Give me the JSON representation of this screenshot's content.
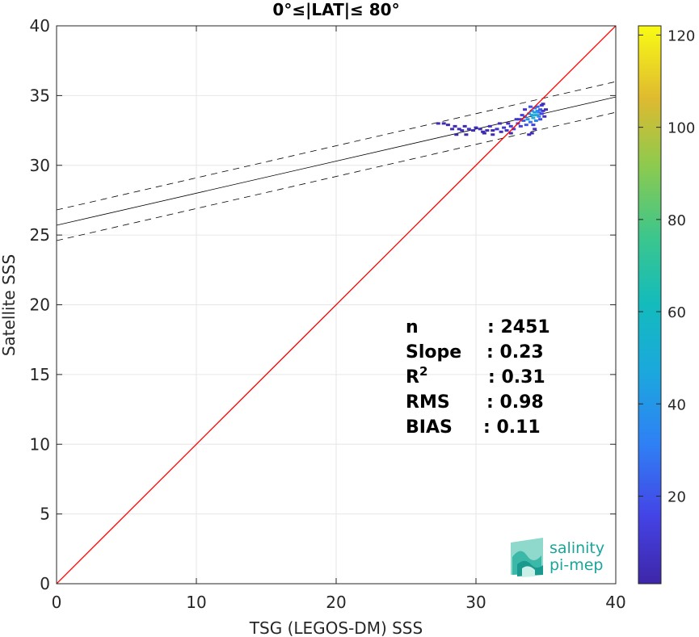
{
  "chart_data": {
    "type": "heatmap",
    "title": "0°≤|LAT|≤ 80°",
    "xlabel": "TSG (LEGOS-DM) SSS",
    "ylabel": "Satellite SSS",
    "xlim": [
      0,
      40
    ],
    "ylim": [
      0,
      40
    ],
    "xticks": [
      "0",
      "10",
      "20",
      "30",
      "40"
    ],
    "yticks": [
      "0",
      "5",
      "10",
      "15",
      "20",
      "25",
      "30",
      "35",
      "40"
    ],
    "grid": true,
    "colorbar": {
      "range": [
        1,
        122
      ],
      "ticks": [
        "20",
        "40",
        "60",
        "80",
        "100",
        "120"
      ],
      "tick_values": [
        20,
        40,
        60,
        80,
        100,
        120
      ],
      "colormap": "parula"
    },
    "reference_line": {
      "label": "1:1",
      "color": "#ff0000",
      "from": [
        0,
        0
      ],
      "to": [
        40,
        40
      ]
    },
    "regression_line": {
      "intercept": 25.7,
      "slope": 0.23,
      "band": 1.1
    },
    "stats": [
      {
        "label": "n",
        "value": ": 2451"
      },
      {
        "label": "Slope",
        "value": ": 0.23"
      },
      {
        "label": "R",
        "sup": "2",
        "value": ": 0.31"
      },
      {
        "label": "RMS",
        "value": ": 0.98"
      },
      {
        "label": "BIAS",
        "value": ": 0.11"
      }
    ],
    "density_points": [
      [
        27.3,
        33.0,
        4
      ],
      [
        27.7,
        33.0,
        3
      ],
      [
        28.0,
        32.9,
        2
      ],
      [
        28.3,
        32.6,
        5
      ],
      [
        28.5,
        32.8,
        3
      ],
      [
        28.8,
        32.6,
        4
      ],
      [
        29.0,
        32.5,
        6
      ],
      [
        29.2,
        32.8,
        3
      ],
      [
        29.5,
        32.6,
        8
      ],
      [
        29.8,
        32.5,
        5
      ],
      [
        30.0,
        32.7,
        4
      ],
      [
        30.3,
        32.6,
        6
      ],
      [
        30.5,
        32.4,
        3
      ],
      [
        30.8,
        32.5,
        5
      ],
      [
        31.0,
        32.8,
        7
      ],
      [
        31.2,
        32.5,
        4
      ],
      [
        31.5,
        32.6,
        9
      ],
      [
        31.8,
        32.4,
        6
      ],
      [
        32.0,
        32.7,
        10
      ],
      [
        32.2,
        32.5,
        8
      ],
      [
        32.5,
        32.8,
        12
      ],
      [
        32.7,
        32.6,
        15
      ],
      [
        33.0,
        33.0,
        18
      ],
      [
        33.2,
        32.8,
        14
      ],
      [
        33.4,
        33.2,
        22
      ],
      [
        33.5,
        33.5,
        30
      ],
      [
        33.7,
        33.3,
        40
      ],
      [
        33.8,
        33.7,
        35
      ],
      [
        33.9,
        33.1,
        28
      ],
      [
        34.0,
        33.6,
        45
      ],
      [
        34.0,
        33.9,
        38
      ],
      [
        34.1,
        33.4,
        50
      ],
      [
        34.2,
        33.8,
        42
      ],
      [
        34.2,
        34.1,
        30
      ],
      [
        34.3,
        33.6,
        55
      ],
      [
        34.3,
        33.2,
        33
      ],
      [
        34.4,
        33.9,
        40
      ],
      [
        34.4,
        34.2,
        25
      ],
      [
        34.5,
        33.5,
        36
      ],
      [
        34.5,
        33.8,
        30
      ],
      [
        34.6,
        34.0,
        22
      ],
      [
        34.6,
        33.3,
        18
      ],
      [
        34.7,
        33.7,
        15
      ],
      [
        34.7,
        34.3,
        12
      ],
      [
        34.8,
        33.9,
        10
      ],
      [
        33.6,
        32.9,
        20
      ],
      [
        33.3,
        33.6,
        16
      ],
      [
        33.1,
        33.3,
        12
      ],
      [
        34.1,
        32.9,
        14
      ],
      [
        34.2,
        32.6,
        8
      ],
      [
        33.9,
        34.2,
        20
      ],
      [
        33.5,
        34.0,
        10
      ],
      [
        32.9,
        33.3,
        9
      ],
      [
        32.3,
        33.0,
        6
      ],
      [
        31.7,
        33.0,
        4
      ],
      [
        34.0,
        32.3,
        5
      ],
      [
        33.8,
        32.2,
        4
      ],
      [
        32.5,
        32.3,
        3
      ],
      [
        31.2,
        32.2,
        3
      ],
      [
        30.6,
        32.3,
        2
      ],
      [
        29.3,
        32.2,
        3
      ],
      [
        28.6,
        32.2,
        2
      ],
      [
        34.9,
        33.5,
        6
      ],
      [
        35.0,
        34.0,
        4
      ],
      [
        34.8,
        34.4,
        5
      ]
    ],
    "logo": {
      "line1": "salinity",
      "line2": "pi-mep"
    }
  }
}
